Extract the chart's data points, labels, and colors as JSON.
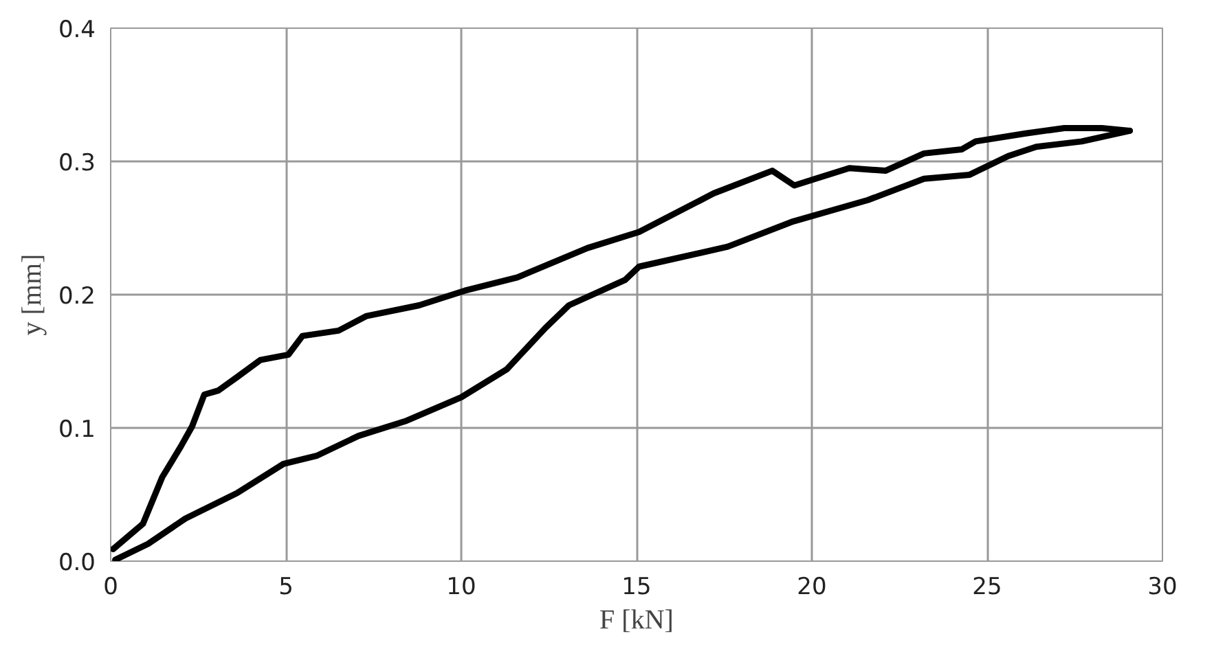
{
  "chart_data": {
    "type": "line",
    "xlabel": "F [kN]",
    "ylabel": "y [mm]",
    "xlim": [
      0,
      30
    ],
    "ylim": [
      0,
      0.4
    ],
    "xticks": [
      0,
      5,
      10,
      15,
      20,
      25,
      30
    ],
    "yticks": [
      {
        "value": 0,
        "label": "0.0"
      },
      {
        "value": 0.1,
        "label": "0.1"
      },
      {
        "value": 0.2,
        "label": "0.2"
      },
      {
        "value": 0.3,
        "label": "0.3"
      },
      {
        "value": 0.4,
        "label": "0.4"
      }
    ],
    "grid": true,
    "marker": "none",
    "line_style": "solid",
    "series": [
      {
        "color": "#000000",
        "x": [
          0.07,
          0.92,
          1.47,
          2.0,
          2.32,
          2.67,
          3.07,
          3.6,
          4.27,
          5.07,
          5.47,
          6.5,
          7.3,
          8.8,
          10.1,
          11.6,
          13.6,
          15.07,
          17.2,
          18.87,
          19.5,
          21.07,
          22.1,
          23.2,
          24.27,
          24.67,
          26.1,
          27.2,
          28.27,
          29.07
        ],
        "values": [
          0.009,
          0.028,
          0.063,
          0.086,
          0.101,
          0.125,
          0.128,
          0.138,
          0.151,
          0.155,
          0.169,
          0.173,
          0.184,
          0.192,
          0.203,
          0.213,
          0.235,
          0.247,
          0.276,
          0.293,
          0.282,
          0.295,
          0.293,
          0.306,
          0.309,
          0.315,
          0.321,
          0.325,
          0.325,
          0.323
        ]
      },
      {
        "color": "#000000",
        "x": [
          0.13,
          1.07,
          2.13,
          3.6,
          4.93,
          5.87,
          7.07,
          8.4,
          10.0,
          11.3,
          12.4,
          13.07,
          14.67,
          15.07,
          17.6,
          19.47,
          21.6,
          23.2,
          24.5,
          25.6,
          26.4,
          27.7,
          29.07
        ],
        "values": [
          0.001,
          0.013,
          0.032,
          0.051,
          0.073,
          0.079,
          0.094,
          0.105,
          0.123,
          0.144,
          0.175,
          0.192,
          0.211,
          0.221,
          0.236,
          0.255,
          0.271,
          0.287,
          0.29,
          0.304,
          0.311,
          0.315,
          0.323
        ]
      }
    ]
  }
}
